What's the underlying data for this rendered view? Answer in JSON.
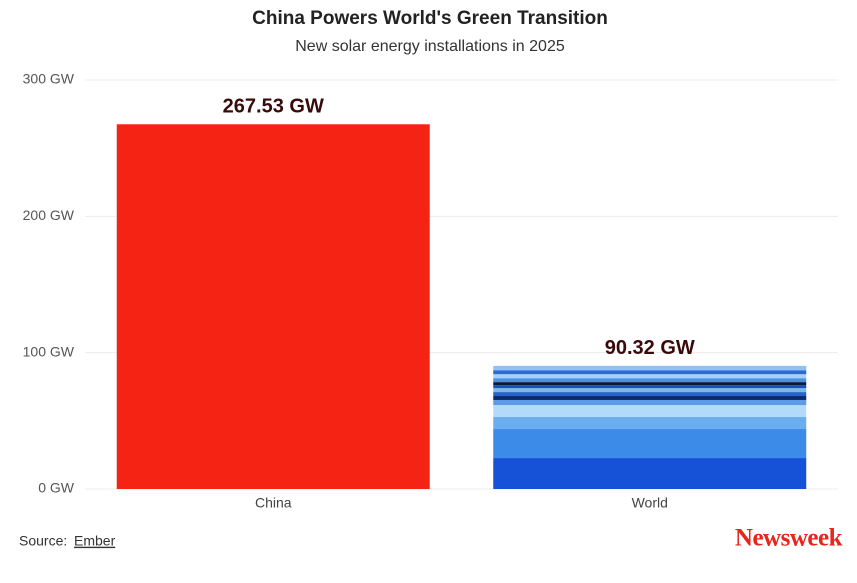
{
  "chart_data": {
    "type": "bar",
    "title": "China Powers World's Green Transition",
    "subtitle": "New solar energy installations in 2025",
    "categories": [
      "China",
      "World"
    ],
    "values": [
      267.53,
      90.32
    ],
    "value_labels": [
      "267.53 GW",
      "90.32 GW"
    ],
    "color": "#f52314",
    "segments": [
      {
        "value": 22.7,
        "color": "#1652d8"
      },
      {
        "value": 21.3,
        "color": "#3d8be8"
      },
      {
        "value": 8.8,
        "color": "#6aaef0"
      },
      {
        "value": 8.8,
        "color": "#b3dafa"
      },
      {
        "value": 3.7,
        "color": "#5d9be6"
      },
      {
        "value": 2.9,
        "color": "#0b2a6e"
      },
      {
        "value": 2.9,
        "color": "#2a63c8"
      },
      {
        "value": 2.9,
        "color": "#7eb8ef"
      },
      {
        "value": 2.2,
        "color": "#1d4fb8"
      },
      {
        "value": 2.2,
        "color": "#0a1a3a"
      },
      {
        "value": 2.9,
        "color": "#4f8fe0"
      },
      {
        "value": 2.9,
        "color": "#a9cff5"
      },
      {
        "value": 2.9,
        "color": "#2c6ad0"
      },
      {
        "value": 3.22,
        "color": "#8fc1f2"
      }
    ],
    "ylim": [
      0,
      300
    ],
    "yticks": [
      {
        "value": 0,
        "label": "0 GW"
      },
      {
        "value": 100,
        "label": "100 GW"
      },
      {
        "value": 200,
        "label": "200 GW"
      },
      {
        "value": 300,
        "label": "300 GW"
      }
    ],
    "grid": true
  },
  "footer": {
    "source_label": "Source:",
    "source_link": "Ember",
    "brand": "Newsweek"
  }
}
